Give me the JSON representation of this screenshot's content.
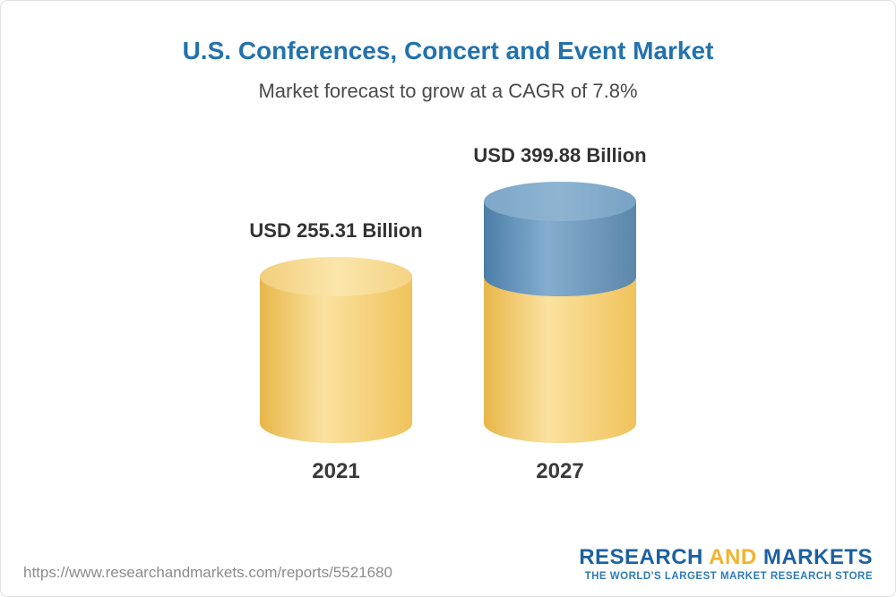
{
  "chart_data": {
    "type": "bar",
    "style": "3d-cylinder",
    "title": "U.S. Conferences, Concert and Event Market",
    "subtitle": "Market forecast to grow at a CAGR of 7.8%",
    "cagr": "7.8%",
    "categories": [
      "2021",
      "2027"
    ],
    "values": [
      255.31,
      399.88
    ],
    "value_labels": [
      "USD 255.31 Billion",
      "USD 399.88 Billion"
    ],
    "unit": "USD Billion",
    "legend_position": "none",
    "grid": false,
    "colors": {
      "title": "#2272ae",
      "bar_base": "#f5c862",
      "bar_growth": "#5c88ae",
      "label_text": "#333333"
    }
  },
  "footer": {
    "url": "https://www.researchandmarkets.com/reports/5521680",
    "logo": {
      "research": "RESEARCH",
      "and": "AND",
      "markets": "MARKETS",
      "tagline": "THE WORLD'S LARGEST MARKET RESEARCH STORE"
    }
  }
}
